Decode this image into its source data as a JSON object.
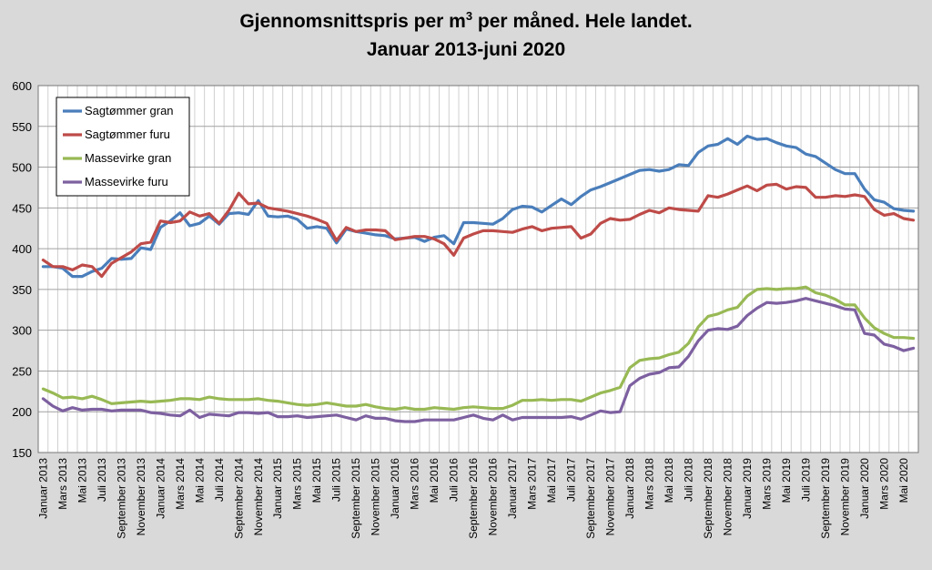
{
  "chart_data": {
    "type": "line",
    "title_line1_pre": "Gjennomsnittspris per m",
    "title_line1_sup": "3",
    "title_line1_post": " per måned.  Hele landet.",
    "title_line2": "Januar 2013-juni 2020",
    "xlabel": "",
    "ylabel": "",
    "ylim": [
      150,
      600
    ],
    "yticks": [
      150,
      200,
      250,
      300,
      350,
      400,
      450,
      500,
      550,
      600
    ],
    "grid": true,
    "legend_position": "top-left",
    "x_months": [
      "2013-01",
      "2013-02",
      "2013-03",
      "2013-04",
      "2013-05",
      "2013-06",
      "2013-07",
      "2013-08",
      "2013-09",
      "2013-10",
      "2013-11",
      "2013-12",
      "2014-01",
      "2014-02",
      "2014-03",
      "2014-04",
      "2014-05",
      "2014-06",
      "2014-07",
      "2014-08",
      "2014-09",
      "2014-10",
      "2014-11",
      "2014-12",
      "2015-01",
      "2015-02",
      "2015-03",
      "2015-04",
      "2015-05",
      "2015-06",
      "2015-07",
      "2015-08",
      "2015-09",
      "2015-10",
      "2015-11",
      "2015-12",
      "2016-01",
      "2016-02",
      "2016-03",
      "2016-04",
      "2016-05",
      "2016-06",
      "2016-07",
      "2016-08",
      "2016-09",
      "2016-10",
      "2016-11",
      "2016-12",
      "2017-01",
      "2017-02",
      "2017-03",
      "2017-04",
      "2017-05",
      "2017-06",
      "2017-07",
      "2017-08",
      "2017-09",
      "2017-10",
      "2017-11",
      "2017-12",
      "2018-01",
      "2018-02",
      "2018-03",
      "2018-04",
      "2018-05",
      "2018-06",
      "2018-07",
      "2018-08",
      "2018-09",
      "2018-10",
      "2018-11",
      "2018-12",
      "2019-01",
      "2019-02",
      "2019-03",
      "2019-04",
      "2019-05",
      "2019-06",
      "2019-07",
      "2019-08",
      "2019-09",
      "2019-10",
      "2019-11",
      "2019-12",
      "2020-01",
      "2020-02",
      "2020-03",
      "2020-04",
      "2020-05",
      "2020-06"
    ],
    "tick_labels": [
      {
        "month": "2013-01",
        "label": "Januar 2013"
      },
      {
        "month": "2013-03",
        "label": "Mars 2013"
      },
      {
        "month": "2013-05",
        "label": "Mai 2013"
      },
      {
        "month": "2013-07",
        "label": "Juli 2013"
      },
      {
        "month": "2013-09",
        "label": "September 2013"
      },
      {
        "month": "2013-11",
        "label": "November 2013"
      },
      {
        "month": "2014-01",
        "label": "Januar 2014"
      },
      {
        "month": "2014-03",
        "label": "Mars 2014"
      },
      {
        "month": "2014-05",
        "label": "Mai 2014"
      },
      {
        "month": "2014-07",
        "label": "Juli 2014"
      },
      {
        "month": "2014-09",
        "label": "September 2014"
      },
      {
        "month": "2014-11",
        "label": "November 2014"
      },
      {
        "month": "2015-01",
        "label": "Januar 2015"
      },
      {
        "month": "2015-03",
        "label": "Mars 2015"
      },
      {
        "month": "2015-05",
        "label": "Mai 2015"
      },
      {
        "month": "2015-07",
        "label": "Juli 2015"
      },
      {
        "month": "2015-09",
        "label": "September 2015"
      },
      {
        "month": "2015-11",
        "label": "November 2015"
      },
      {
        "month": "2016-01",
        "label": "Januar 2016"
      },
      {
        "month": "2016-03",
        "label": "Mars 2016"
      },
      {
        "month": "2016-05",
        "label": "Mai 2016"
      },
      {
        "month": "2016-07",
        "label": "Juli 2016"
      },
      {
        "month": "2016-09",
        "label": "September 2016"
      },
      {
        "month": "2016-11",
        "label": "November 2016"
      },
      {
        "month": "2017-01",
        "label": "Januar 2017"
      },
      {
        "month": "2017-03",
        "label": "Mars 2017"
      },
      {
        "month": "2017-05",
        "label": "Mai 2017"
      },
      {
        "month": "2017-07",
        "label": "Juli 2017"
      },
      {
        "month": "2017-09",
        "label": "September 2017"
      },
      {
        "month": "2017-11",
        "label": "November 2017"
      },
      {
        "month": "2018-01",
        "label": "Januar 2018"
      },
      {
        "month": "2018-03",
        "label": "Mars 2018"
      },
      {
        "month": "2018-05",
        "label": "Mai 2018"
      },
      {
        "month": "2018-07",
        "label": "Juli 2018"
      },
      {
        "month": "2018-09",
        "label": "September 2018"
      },
      {
        "month": "2018-11",
        "label": "November 2018"
      },
      {
        "month": "2019-01",
        "label": "Januar 2019"
      },
      {
        "month": "2019-03",
        "label": "Mars 2019"
      },
      {
        "month": "2019-05",
        "label": "Mai 2019"
      },
      {
        "month": "2019-07",
        "label": "Juli 2019"
      },
      {
        "month": "2019-09",
        "label": "September 2019"
      },
      {
        "month": "2019-11",
        "label": "November 2019"
      },
      {
        "month": "2020-01",
        "label": "Januar 2020"
      },
      {
        "month": "2020-03",
        "label": "Mars 2020"
      },
      {
        "month": "2020-05",
        "label": "Mai 2020"
      }
    ],
    "series": [
      {
        "name": "Sagtømmer gran",
        "color": "#4a7ebb",
        "values": [
          378,
          378,
          376,
          366,
          366,
          372,
          376,
          388,
          387,
          388,
          401,
          399,
          426,
          434,
          444,
          428,
          431,
          440,
          430,
          443,
          444,
          442,
          459,
          440,
          439,
          440,
          436,
          425,
          427,
          425,
          407,
          424,
          421,
          419,
          417,
          416,
          412,
          413,
          414,
          409,
          414,
          416,
          406,
          432,
          432,
          431,
          430,
          437,
          448,
          452,
          451,
          445,
          453,
          461,
          454,
          464,
          472,
          476,
          481,
          486,
          491,
          496,
          497,
          495,
          497,
          503,
          502,
          518,
          526,
          528,
          535,
          528,
          538,
          534,
          535,
          530,
          526,
          524,
          516,
          513,
          505,
          497,
          492,
          492,
          473,
          460,
          457,
          449,
          447,
          446
        ]
      },
      {
        "name": "Sagtømmer furu",
        "color": "#be4b48",
        "values": [
          386,
          378,
          378,
          374,
          380,
          378,
          366,
          382,
          389,
          396,
          406,
          408,
          434,
          432,
          434,
          445,
          440,
          443,
          431,
          447,
          468,
          455,
          456,
          450,
          448,
          446,
          443,
          440,
          436,
          431,
          410,
          426,
          421,
          423,
          423,
          422,
          411,
          413,
          415,
          415,
          412,
          406,
          392,
          413,
          418,
          422,
          422,
          421,
          420,
          424,
          427,
          422,
          425,
          426,
          427,
          413,
          418,
          431,
          437,
          435,
          436,
          442,
          447,
          444,
          450,
          448,
          447,
          446,
          465,
          463,
          467,
          472,
          477,
          471,
          478,
          479,
          473,
          476,
          475,
          463,
          463,
          465,
          464,
          466,
          464,
          448,
          441,
          443,
          437,
          435
        ]
      },
      {
        "name": "Massevirke gran",
        "color": "#98b954",
        "values": [
          228,
          223,
          217,
          218,
          216,
          219,
          215,
          210,
          211,
          212,
          213,
          212,
          213,
          214,
          216,
          216,
          215,
          218,
          216,
          215,
          215,
          215,
          216,
          214,
          213,
          211,
          209,
          208,
          209,
          211,
          209,
          207,
          207,
          209,
          206,
          204,
          203,
          205,
          203,
          203,
          205,
          204,
          203,
          205,
          206,
          205,
          204,
          204,
          208,
          214,
          214,
          215,
          214,
          215,
          215,
          213,
          218,
          223,
          226,
          230,
          254,
          263,
          265,
          266,
          270,
          273,
          284,
          304,
          317,
          320,
          325,
          328,
          342,
          350,
          351,
          350,
          351,
          351,
          353,
          346,
          343,
          338,
          331,
          331,
          315,
          303,
          296,
          291,
          291,
          290
        ]
      },
      {
        "name": "Massevirke furu",
        "color": "#7d60a0",
        "values": [
          216,
          207,
          201,
          205,
          202,
          203,
          203,
          201,
          202,
          202,
          202,
          199,
          198,
          196,
          195,
          202,
          193,
          197,
          196,
          195,
          199,
          199,
          198,
          199,
          194,
          194,
          195,
          193,
          194,
          195,
          196,
          193,
          190,
          195,
          192,
          192,
          189,
          188,
          188,
          190,
          190,
          190,
          190,
          193,
          196,
          192,
          190,
          196,
          190,
          193,
          193,
          193,
          193,
          193,
          194,
          191,
          196,
          201,
          199,
          200,
          232,
          241,
          246,
          248,
          254,
          255,
          268,
          287,
          300,
          302,
          301,
          305,
          318,
          327,
          334,
          333,
          334,
          336,
          339,
          336,
          333,
          330,
          326,
          325,
          296,
          294,
          283,
          280,
          275,
          278
        ]
      }
    ]
  }
}
